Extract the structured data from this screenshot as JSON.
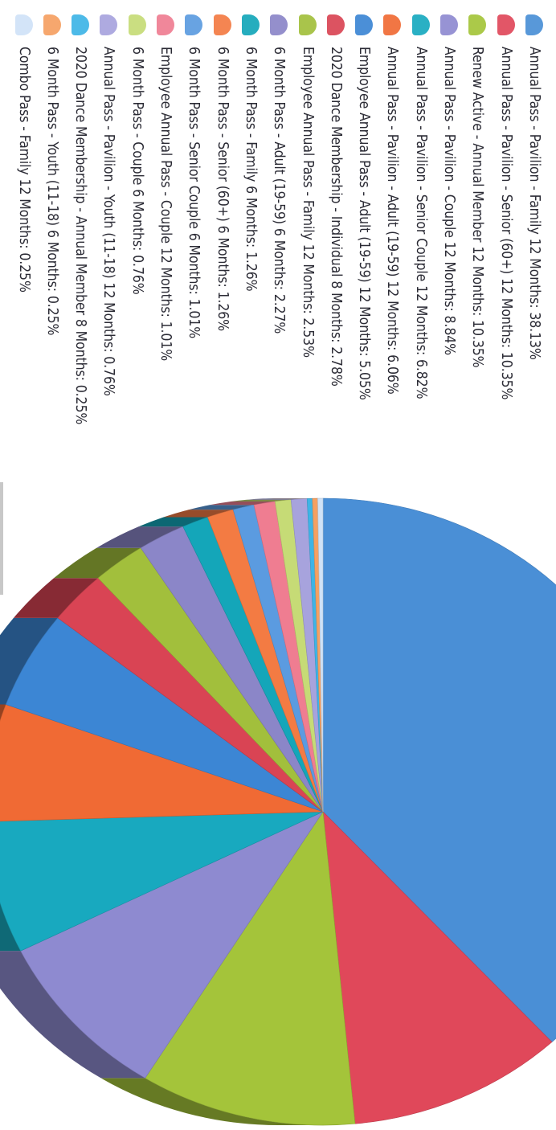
{
  "chart_data": {
    "type": "pie",
    "title": "",
    "legend_position": "right",
    "three_d": true,
    "slices": [
      {
        "label": "Annual Pass - Pavilion - Family 12 Months: 38.13%",
        "value": 38.13,
        "color": "#4a8fd6"
      },
      {
        "label": "Annual Pass - Pavilion - Senior (60+) 12 Months: 10.35%",
        "value": 10.35,
        "color": "#e0485a"
      },
      {
        "label": "Renew Active - Annual Member 12 Months: 10.35%",
        "value": 10.35,
        "color": "#a4c43a"
      },
      {
        "label": "Annual Pass - Pavilion - Couple 12 Months: 8.84%",
        "value": 8.84,
        "color": "#8e8ad0"
      },
      {
        "label": "Annual Pass - Pavilion - Senior Couple 12 Months: 6.82%",
        "value": 6.82,
        "color": "#18a9bf"
      },
      {
        "label": "Annual Pass - Pavilion - Adult (19-59) 12 Months: 6.06%",
        "value": 6.06,
        "color": "#f06a34"
      },
      {
        "label": "Employee Annual Pass - Adult (19-59) 12 Months: 5.05%",
        "value": 5.05,
        "color": "#3c86d4"
      },
      {
        "label": "2020 Dance Membership - Individual 8 Months: 2.78%",
        "value": 2.78,
        "color": "#d94454"
      },
      {
        "label": "Employee Annual Pass - Family 12 Months: 2.53%",
        "value": 2.53,
        "color": "#a2bf3c"
      },
      {
        "label": "6 Month Pass - Adult (19-59) 6 Months: 2.27%",
        "value": 2.27,
        "color": "#8b86c8"
      },
      {
        "label": "6 Month Pass - Family 6 Months: 1.26%",
        "value": 1.26,
        "color": "#14a6b9"
      },
      {
        "label": "6 Month Pass - Senior (60+) 6 Months: 1.26%",
        "value": 1.26,
        "color": "#f37b43"
      },
      {
        "label": "6 Month Pass - Senior Couple 6 Months: 1.01%",
        "value": 1.01,
        "color": "#5b9be0"
      },
      {
        "label": "Employee Annual Pass - Couple 12 Months: 1.01%",
        "value": 1.01,
        "color": "#ef7d91"
      },
      {
        "label": "6 Month Pass - Couple 6 Months: 0.76%",
        "value": 0.76,
        "color": "#c6db76"
      },
      {
        "label": "Annual Pass - Pavilion - Youth (11-18) 12 Months: 0.76%",
        "value": 0.76,
        "color": "#a7a3dd"
      },
      {
        "label": "2020 Dance Membership - Annual Member 8 Months: 0.25%",
        "value": 0.25,
        "color": "#3eb4e6"
      },
      {
        "label": "6 Month Pass - Youth (11-18) 6 Months: 0.25%",
        "value": 0.25,
        "color": "#f5a062"
      },
      {
        "label": "Combo Pass - Family 12 Months: 0.25%",
        "value": 0.25,
        "color": "#cfe2f7"
      }
    ]
  }
}
